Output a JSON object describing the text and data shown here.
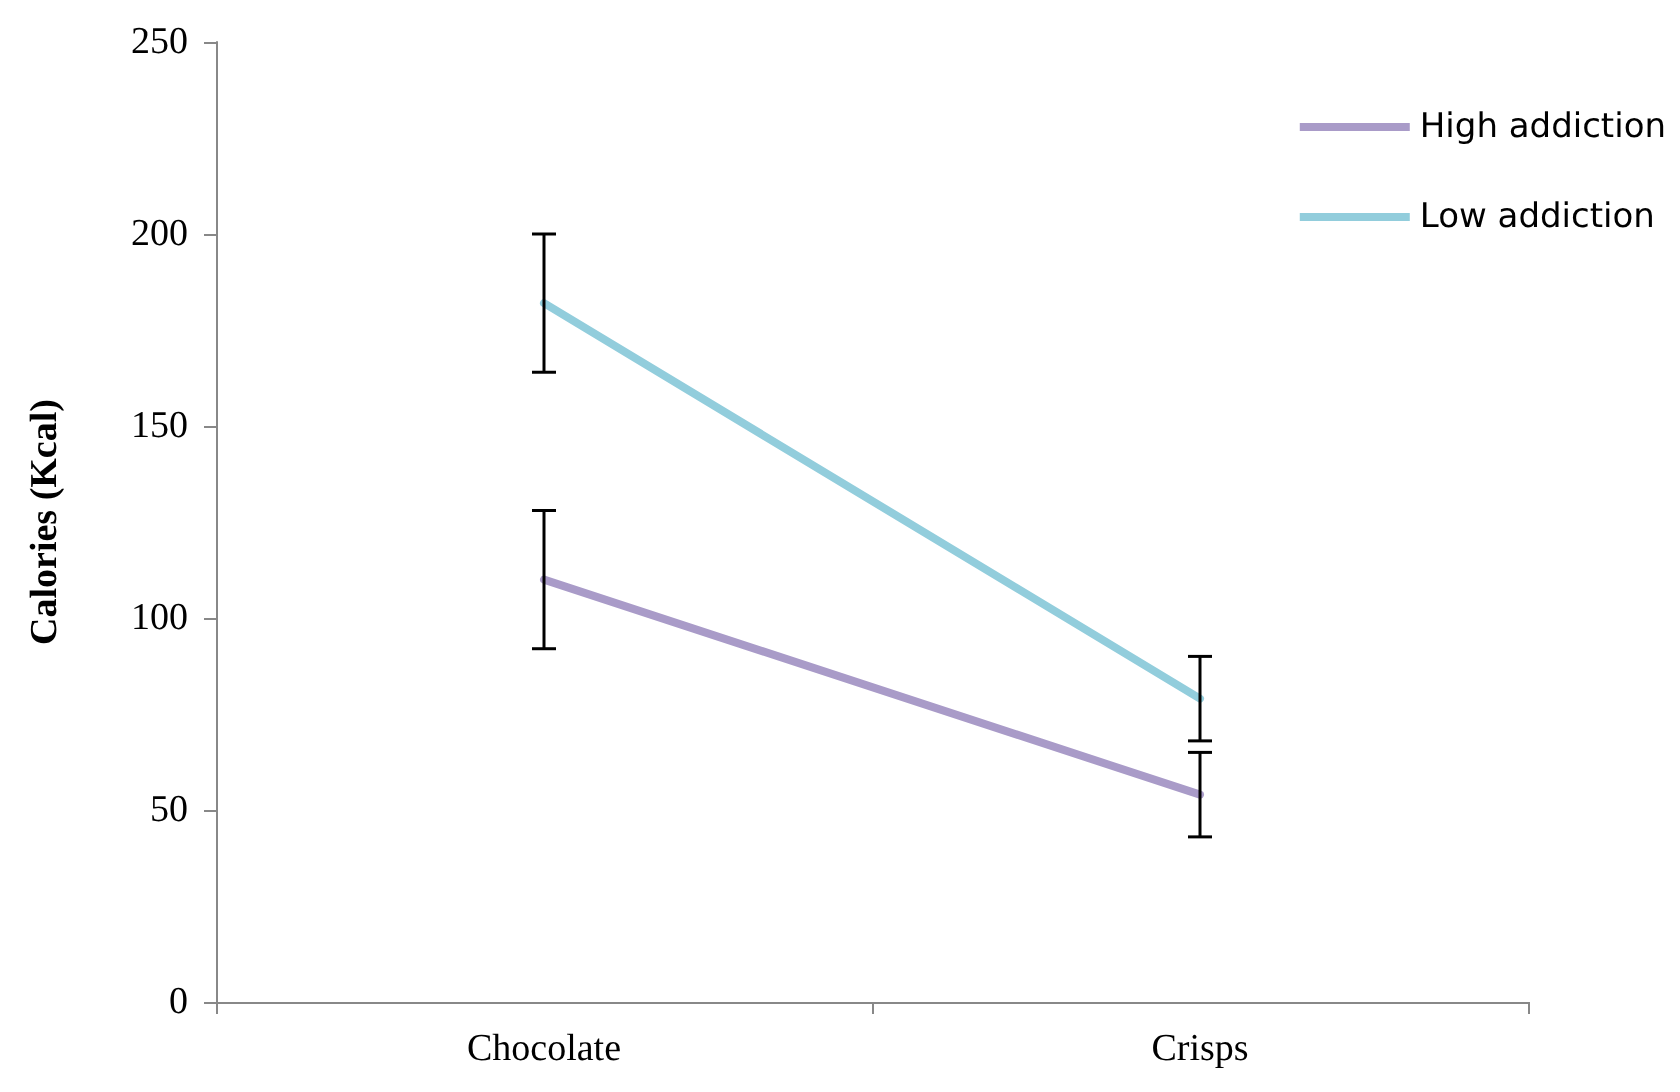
{
  "chart_data": {
    "type": "line",
    "ylabel": "Calories (Kcal)",
    "categories": [
      "Chocolate",
      "Crisps"
    ],
    "series": [
      {
        "name": "High addiction",
        "color": "#a99bc8",
        "values": [
          110,
          54
        ],
        "errors": [
          18,
          11
        ]
      },
      {
        "name": "Low addiction",
        "color": "#92cddc",
        "values": [
          182,
          79
        ],
        "errors": [
          18,
          11
        ]
      }
    ],
    "ylim": [
      0,
      250
    ],
    "yticks": [
      0,
      50,
      100,
      150,
      200,
      250
    ],
    "grid": false,
    "legend": "top right",
    "marker": "none",
    "line_style": "solid"
  }
}
